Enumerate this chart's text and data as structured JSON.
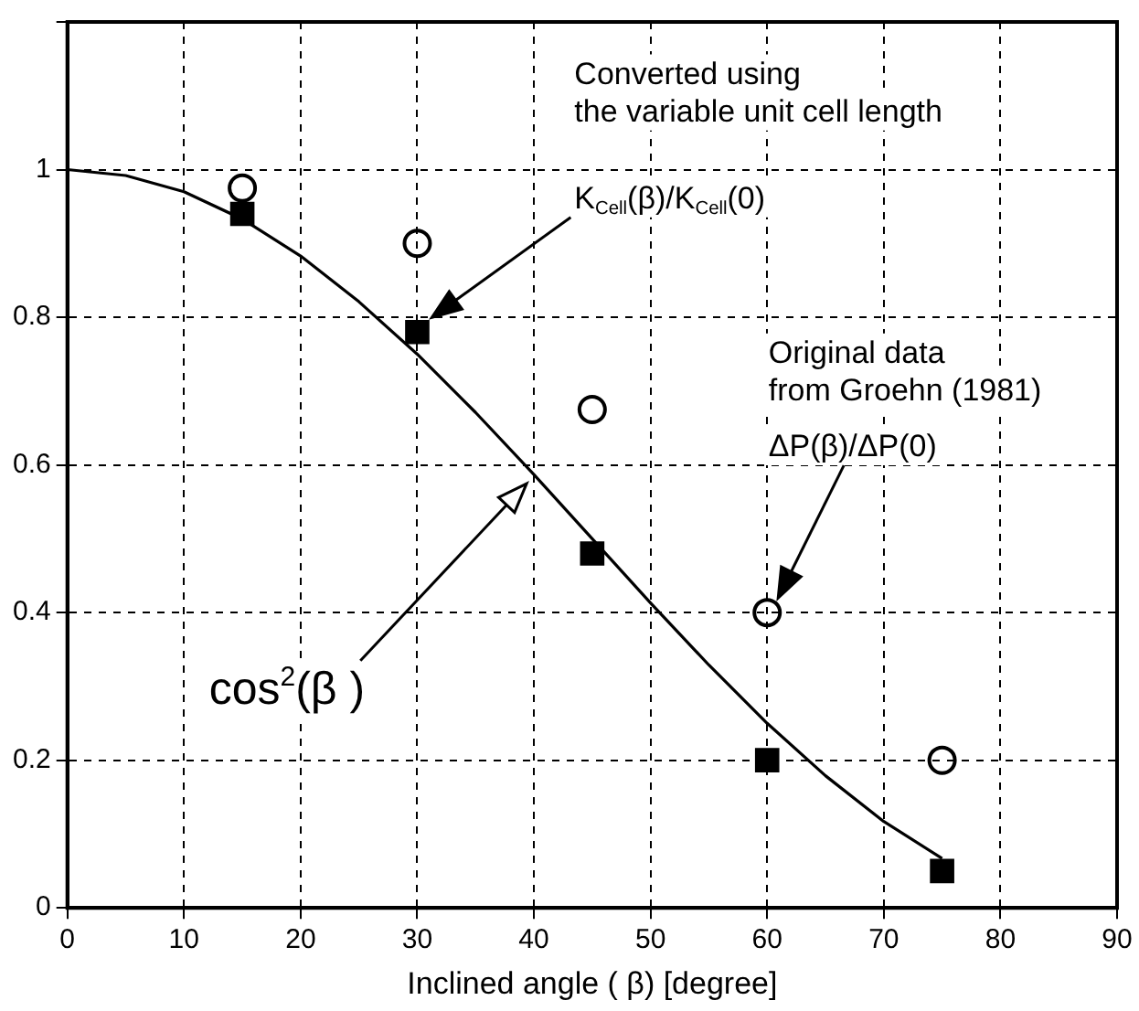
{
  "chart_data": {
    "type": "scatter",
    "xlabel": "Inclined angle ( β) [degree]",
    "xlim": [
      0,
      90
    ],
    "xticks": [
      0,
      10,
      20,
      30,
      40,
      50,
      60,
      70,
      80,
      90
    ],
    "ylim": [
      0,
      1.2
    ],
    "yticks": [
      0,
      0.2,
      0.4,
      0.6,
      0.8,
      1,
      {
        "value": 1.2,
        "label": null
      }
    ],
    "grid": true,
    "legend": false,
    "series": [
      {
        "type": "line",
        "marker": "none",
        "color": "#000000",
        "x": [
          0,
          5,
          10,
          15,
          20,
          25,
          30,
          35,
          40,
          45,
          50,
          55,
          60,
          65,
          70,
          75
        ],
        "values": [
          1,
          0.992,
          0.97,
          0.933,
          0.883,
          0.821,
          0.75,
          0.671,
          0.587,
          0.5,
          0.413,
          0.329,
          0.25,
          0.179,
          0.117,
          0.067
        ]
      },
      {
        "marker": "square",
        "color": "#000000",
        "x": [
          15,
          30,
          45,
          60,
          75
        ],
        "values": [
          0.94,
          0.78,
          0.48,
          0.2,
          0.05
        ]
      },
      {
        "marker": "circle",
        "color": "#000000",
        "x": [
          15,
          30,
          45,
          60,
          75
        ],
        "values": [
          0.975,
          0.9,
          0.675,
          0.4,
          0.2
        ]
      }
    ],
    "annotations": [
      "Converted using\nthe variable unit cell length",
      "Original data\nfrom Groehn (1981)",
      "cos$^{2}$(β )",
      "K$_{Cell}$(β)/K$_{Cell}$(0)",
      "ΔP(β)/ΔP(0)"
    ]
  }
}
